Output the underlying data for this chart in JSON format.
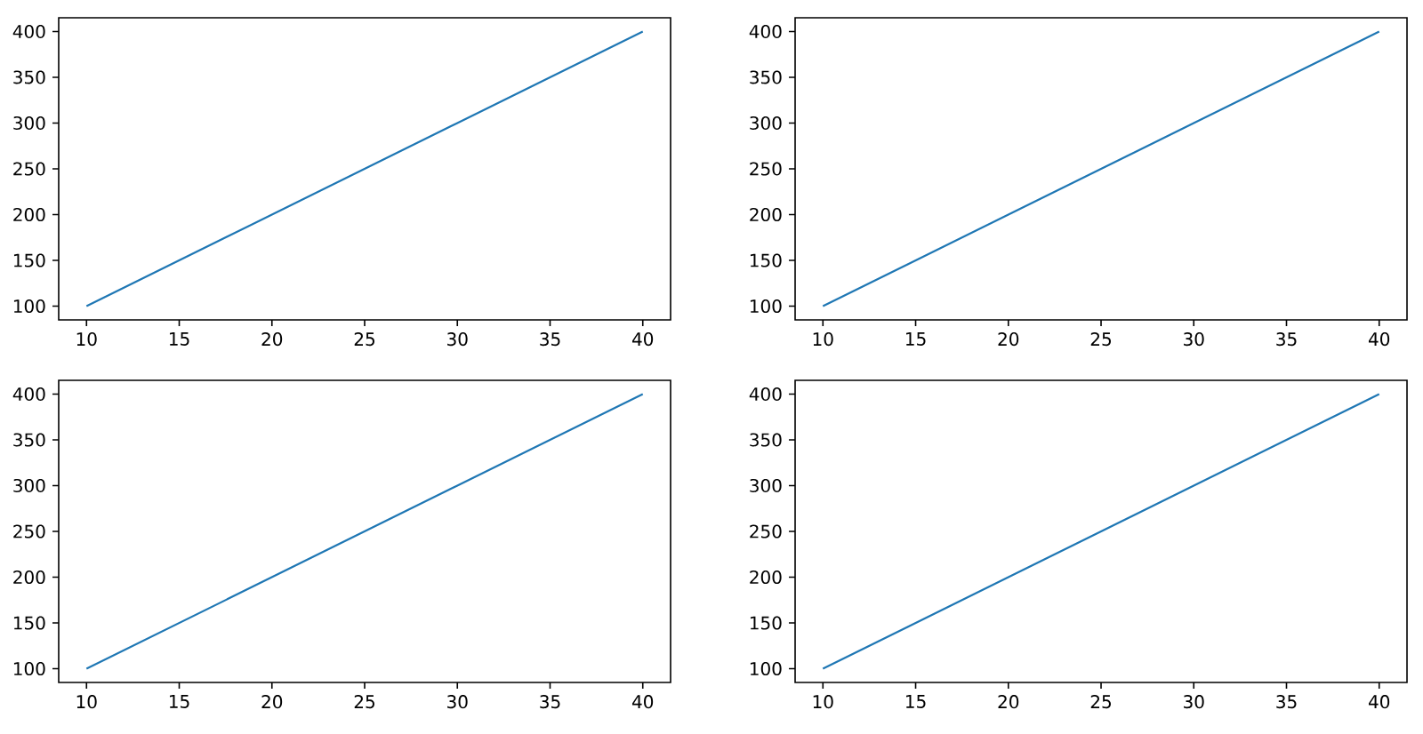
{
  "chart_data": [
    {
      "type": "line",
      "x": [
        10,
        20,
        30,
        40
      ],
      "values": [
        100,
        200,
        300,
        400
      ],
      "color": "#1f77b4",
      "xlim": [
        8.5,
        41.5
      ],
      "ylim": [
        85,
        415
      ],
      "xticks": [
        10,
        15,
        20,
        25,
        30,
        35,
        40
      ],
      "yticks": [
        100,
        150,
        200,
        250,
        300,
        350,
        400
      ]
    },
    {
      "type": "line",
      "x": [
        10,
        20,
        30,
        40
      ],
      "values": [
        100,
        200,
        300,
        400
      ],
      "color": "#1f77b4",
      "xlim": [
        8.5,
        41.5
      ],
      "ylim": [
        85,
        415
      ],
      "xticks": [
        10,
        15,
        20,
        25,
        30,
        35,
        40
      ],
      "yticks": [
        100,
        150,
        200,
        250,
        300,
        350,
        400
      ]
    },
    {
      "type": "line",
      "x": [
        10,
        20,
        30,
        40
      ],
      "values": [
        100,
        200,
        300,
        400
      ],
      "color": "#1f77b4",
      "xlim": [
        8.5,
        41.5
      ],
      "ylim": [
        85,
        415
      ],
      "xticks": [
        10,
        15,
        20,
        25,
        30,
        35,
        40
      ],
      "yticks": [
        100,
        150,
        200,
        250,
        300,
        350,
        400
      ]
    },
    {
      "type": "line",
      "x": [
        10,
        20,
        30,
        40
      ],
      "values": [
        100,
        200,
        300,
        400
      ],
      "color": "#1f77b4",
      "xlim": [
        8.5,
        41.5
      ],
      "ylim": [
        85,
        415
      ],
      "xticks": [
        10,
        15,
        20,
        25,
        30,
        35,
        40
      ],
      "yticks": [
        100,
        150,
        200,
        250,
        300,
        350,
        400
      ]
    }
  ]
}
